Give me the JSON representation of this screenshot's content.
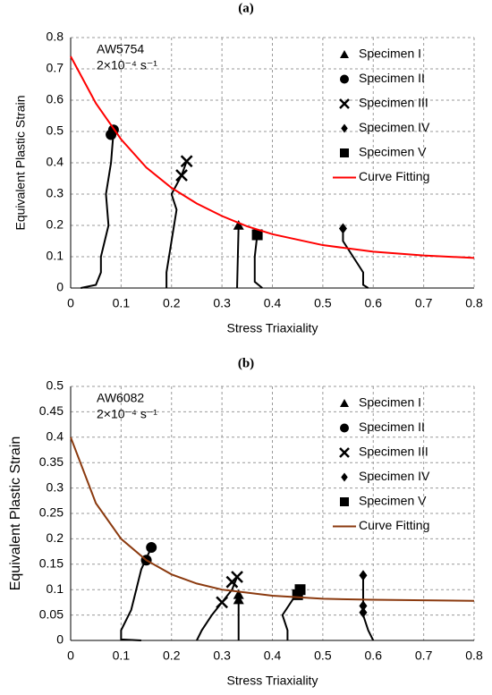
{
  "chart_data": [
    {
      "type": "scatter",
      "label": "(a)",
      "annotation": [
        "AW5754",
        "2×10⁻⁴ s⁻¹"
      ],
      "xlabel": "Stress Triaxiality",
      "ylabel": "Equivalent Plastic Strain",
      "xlim": [
        0,
        0.8
      ],
      "ylim": [
        0,
        0.8
      ],
      "xticks": [
        0,
        0.1,
        0.2,
        0.3,
        0.4,
        0.5,
        0.6,
        0.7,
        0.8
      ],
      "yticks": [
        0,
        0.1,
        0.2,
        0.3,
        0.4,
        0.5,
        0.6,
        0.7,
        0.8
      ],
      "grid": true,
      "legend": "upper right",
      "series": [
        {
          "name": "Specimen I",
          "marker": "triangle",
          "color": "#000000",
          "x": [
            0.333
          ],
          "values": [
            0.2
          ]
        },
        {
          "name": "Specimen II",
          "marker": "circle",
          "color": "#000000",
          "x": [
            0.085,
            0.08
          ],
          "values": [
            0.505,
            0.49
          ]
        },
        {
          "name": "Specimen III",
          "marker": "cross",
          "color": "#000000",
          "x": [
            0.23,
            0.22
          ],
          "values": [
            0.405,
            0.36
          ]
        },
        {
          "name": "Specimen IV",
          "marker": "diamond",
          "color": "#000000",
          "x": [
            0.54
          ],
          "values": [
            0.19
          ]
        },
        {
          "name": "Specimen V",
          "marker": "square",
          "color": "#000000",
          "x": [
            0.37
          ],
          "values": [
            0.17
          ]
        },
        {
          "name": "Curve Fitting",
          "marker": "line",
          "color": "#ff0000",
          "x": [
            0,
            0.05,
            0.1,
            0.15,
            0.2,
            0.25,
            0.3,
            0.35,
            0.4,
            0.5,
            0.6,
            0.7,
            0.8
          ],
          "values": [
            0.74,
            0.59,
            0.475,
            0.385,
            0.32,
            0.27,
            0.23,
            0.197,
            0.172,
            0.137,
            0.116,
            0.104,
            0.096
          ]
        }
      ],
      "paths": [
        {
          "color": "#000000",
          "x": [
            0.02,
            0.05,
            0.06,
            0.06,
            0.075,
            0.07,
            0.08,
            0.085
          ],
          "values": [
            0,
            0.01,
            0.05,
            0.1,
            0.2,
            0.3,
            0.4,
            0.5
          ]
        },
        {
          "color": "#000000",
          "x": [
            0.19,
            0.19,
            0.2,
            0.21,
            0.2,
            0.22,
            0.23
          ],
          "values": [
            0,
            0.05,
            0.15,
            0.25,
            0.3,
            0.36,
            0.405
          ]
        },
        {
          "color": "#000000",
          "x": [
            0.33,
            0.333
          ],
          "values": [
            0,
            0.2
          ]
        },
        {
          "color": "#000000",
          "x": [
            0.38,
            0.365,
            0.365,
            0.37
          ],
          "values": [
            0,
            0.02,
            0.1,
            0.17
          ]
        },
        {
          "color": "#000000",
          "x": [
            0.59,
            0.58,
            0.58,
            0.56,
            0.54,
            0.54
          ],
          "values": [
            0,
            0.01,
            0.05,
            0.1,
            0.15,
            0.19
          ]
        }
      ]
    },
    {
      "type": "scatter",
      "label": "(b)",
      "annotation": [
        "AW6082",
        "2×10⁻⁴ s⁻¹"
      ],
      "xlabel": "Stress Triaxiality",
      "ylabel": "Equivalent Plastic Strain",
      "xlim": [
        0,
        0.8
      ],
      "ylim": [
        0,
        0.5
      ],
      "xticks": [
        0,
        0.1,
        0.2,
        0.3,
        0.4,
        0.5,
        0.6,
        0.7,
        0.8
      ],
      "yticks": [
        0,
        0.05,
        0.1,
        0.15,
        0.2,
        0.25,
        0.3,
        0.35,
        0.4,
        0.45,
        0.5
      ],
      "grid": true,
      "legend": "upper right",
      "series": [
        {
          "name": "Specimen I",
          "marker": "triangle",
          "color": "#000000",
          "x": [
            0.333,
            0.333
          ],
          "values": [
            0.09,
            0.08
          ]
        },
        {
          "name": "Specimen II",
          "marker": "circle",
          "color": "#000000",
          "x": [
            0.16,
            0.15
          ],
          "values": [
            0.183,
            0.158
          ]
        },
        {
          "name": "Specimen III",
          "marker": "cross",
          "color": "#000000",
          "x": [
            0.33,
            0.32,
            0.3
          ],
          "values": [
            0.125,
            0.115,
            0.075
          ]
        },
        {
          "name": "Specimen IV",
          "marker": "diamond",
          "color": "#000000",
          "x": [
            0.58,
            0.58,
            0.58
          ],
          "values": [
            0.128,
            0.068,
            0.055
          ]
        },
        {
          "name": "Specimen V",
          "marker": "square",
          "color": "#000000",
          "x": [
            0.455,
            0.45
          ],
          "values": [
            0.1,
            0.09
          ]
        },
        {
          "name": "Curve Fitting",
          "marker": "line",
          "color": "#8b3a0f",
          "x": [
            0,
            0.05,
            0.1,
            0.15,
            0.2,
            0.25,
            0.3,
            0.4,
            0.5,
            0.6,
            0.7,
            0.8
          ],
          "values": [
            0.4,
            0.27,
            0.2,
            0.158,
            0.13,
            0.112,
            0.1,
            0.088,
            0.082,
            0.08,
            0.079,
            0.078
          ]
        }
      ],
      "paths": [
        {
          "color": "#000000",
          "x": [
            0.14,
            0.1,
            0.1,
            0.12,
            0.13,
            0.14,
            0.16
          ],
          "values": [
            0,
            0.002,
            0.02,
            0.06,
            0.1,
            0.14,
            0.183
          ]
        },
        {
          "color": "#000000",
          "x": [
            0.25,
            0.26,
            0.28,
            0.3,
            0.32,
            0.33
          ],
          "values": [
            0,
            0.02,
            0.05,
            0.075,
            0.1,
            0.125
          ]
        },
        {
          "color": "#000000",
          "x": [
            0.333,
            0.333
          ],
          "values": [
            0,
            0.09
          ]
        },
        {
          "color": "#000000",
          "x": [
            0.43,
            0.43,
            0.42,
            0.44,
            0.455
          ],
          "values": [
            0,
            0.02,
            0.05,
            0.08,
            0.1
          ]
        },
        {
          "color": "#000000",
          "x": [
            0.6,
            0.59,
            0.58,
            0.58
          ],
          "values": [
            0,
            0.02,
            0.05,
            0.128
          ]
        }
      ]
    }
  ]
}
